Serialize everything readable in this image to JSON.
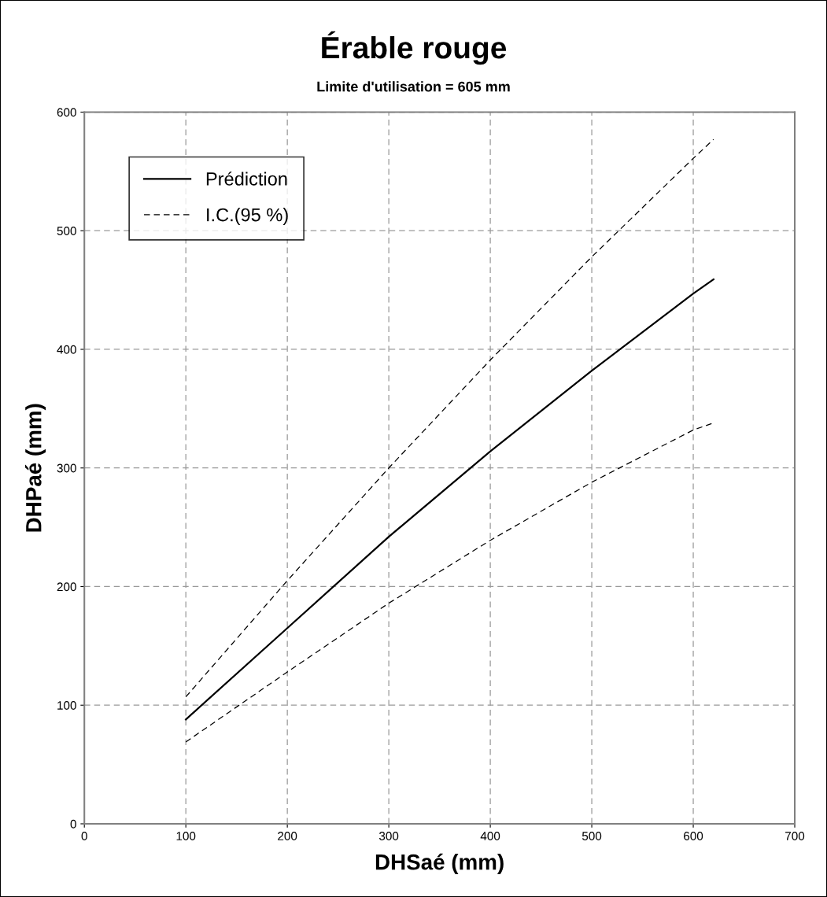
{
  "chart_data": {
    "type": "line",
    "title": "Érable rouge",
    "subtitle": "Limite d'utilisation = 605 mm",
    "xlabel": "DHSaé (mm)",
    "ylabel": "DHPaé (mm)",
    "x": [
      100,
      200,
      300,
      400,
      500,
      600,
      620
    ],
    "series": [
      {
        "name": "Prédiction",
        "color": "#000000",
        "line_style": "solid",
        "values": [
          88,
          165,
          242,
          314,
          382,
          447,
          459
        ]
      },
      {
        "name": "I.C.(95 %)",
        "color": "#000000",
        "line_style": "dashed",
        "values": [
          107,
          205,
          300,
          391,
          478,
          561,
          577
        ]
      },
      {
        "color": "#000000",
        "line_style": "dashed",
        "values": [
          69,
          128,
          186,
          239,
          288,
          332,
          338
        ]
      }
    ],
    "xlim": [
      0,
      700
    ],
    "xticks": [
      0,
      100,
      200,
      300,
      400,
      500,
      600,
      700
    ],
    "ylim": [
      0,
      600
    ],
    "yticks": [
      0,
      100,
      200,
      300,
      400,
      500,
      600
    ],
    "grid": true,
    "legend": "top left"
  }
}
